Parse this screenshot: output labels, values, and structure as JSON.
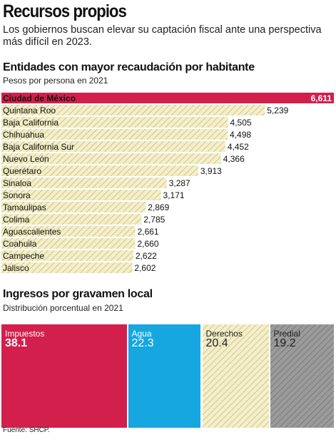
{
  "header": {
    "title": "Recursos propios",
    "subtitle": "Los gobiernos buscan elevar su captación fiscal ante una perspectiva más difícil en 2023."
  },
  "chart_data": [
    {
      "type": "bar",
      "orientation": "horizontal",
      "title": "Entidades con mayor recaudación por habitante",
      "subtitle": "Pesos por persona en 2021",
      "categories": [
        "Ciudad de México",
        "Quintana Roo",
        "Baja California",
        "Chihuahua",
        "Baja California Sur",
        "Nuevo León",
        "Querétaro",
        "Sinaloa",
        "Sonora",
        "Tamaulipas",
        "Colima",
        "Aguascalientes",
        "Coahuila",
        "Campeche",
        "Jalisco"
      ],
      "values": [
        6611,
        5239,
        4505,
        4498,
        4452,
        4366,
        3913,
        3287,
        3171,
        2869,
        2785,
        2661,
        2660,
        2622,
        2602
      ],
      "value_labels": [
        "6,611",
        "5,239",
        "4,505",
        "4,498",
        "4,452",
        "4,366",
        "3,913",
        "3,287",
        "3,171",
        "2,869",
        "2,785",
        "2,661",
        "2,660",
        "2,622",
        "2,602"
      ],
      "highlight_index": 0,
      "colors": {
        "highlight": "#d21f4b",
        "bar": "#f4efc9",
        "hatch": "#b9ad6c"
      }
    },
    {
      "type": "bar",
      "orientation": "stacked-100",
      "title": "Ingresos por gravamen local",
      "subtitle": "Distribución porcentual en 2021",
      "categories": [
        "Impuestos",
        "Agua",
        "Derechos",
        "Predial"
      ],
      "values": [
        38.1,
        22.3,
        20.4,
        19.2
      ],
      "value_labels": [
        "38.1",
        "22.3",
        "20.4",
        "19.2"
      ],
      "colors": [
        "#d21f4b",
        "#16a6e0",
        "#f4efc9",
        "#9b9b9b"
      ],
      "text_colors": [
        "#ffffff",
        "#ffffff",
        "#222222",
        "#222222"
      ]
    }
  ],
  "footer": {
    "source": "Fuente: SHCP."
  }
}
